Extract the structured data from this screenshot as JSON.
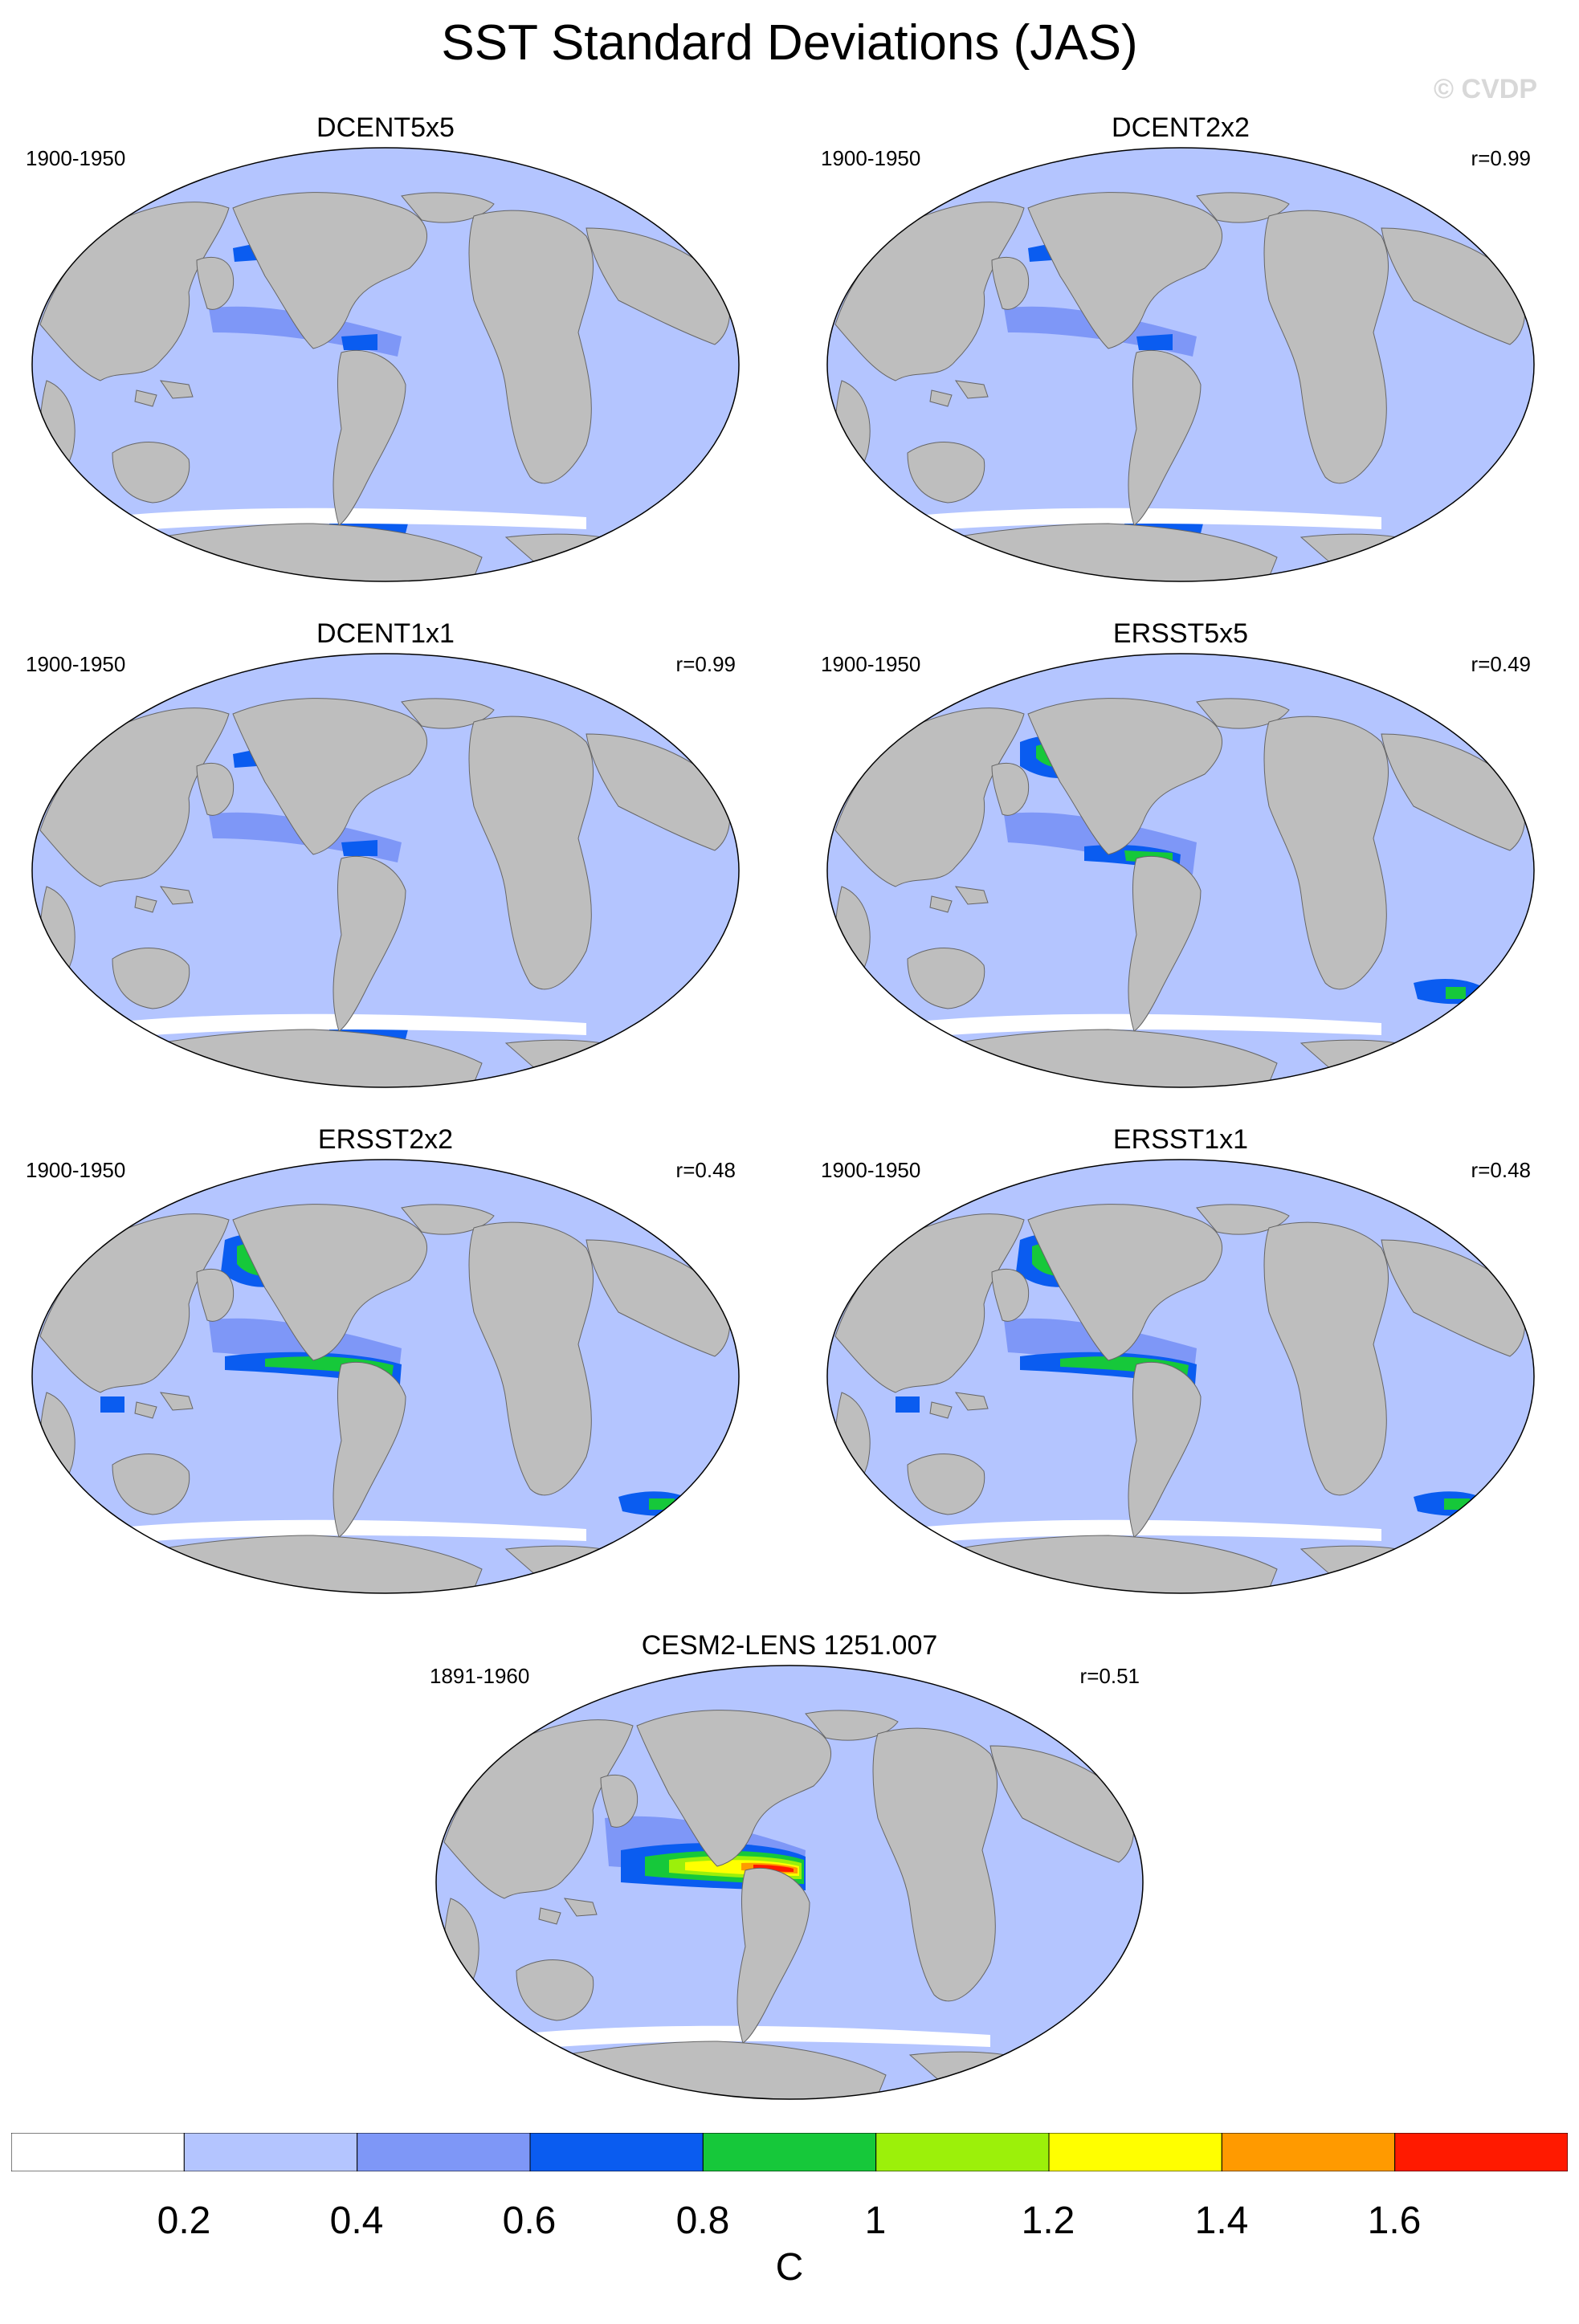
{
  "title": "SST Standard Deviations (JAS)",
  "credit": "© CVDP",
  "colors": {
    "land": "#bebebe",
    "ocean_low": "#b4c5ff",
    "ocean_mid": "#7e97f7",
    "ocean_blue": "#0a5cf0",
    "ocean_green": "#16c83a",
    "ocean_lime": "#9cf00a",
    "ocean_yellow": "#ffff00",
    "ocean_orange": "#ff9a00",
    "ocean_red": "#ff1a00"
  },
  "panels": [
    {
      "title": "DCENT5x5",
      "period": "1900-1950",
      "corr": "",
      "intensity": 1
    },
    {
      "title": "DCENT2x2",
      "period": "1900-1950",
      "corr": "r=0.99",
      "intensity": 1
    },
    {
      "title": "DCENT1x1",
      "period": "1900-1950",
      "corr": "r=0.99",
      "intensity": 1
    },
    {
      "title": "ERSST5x5",
      "period": "1900-1950",
      "corr": "r=0.49",
      "intensity": 2
    },
    {
      "title": "ERSST2x2",
      "period": "1900-1950",
      "corr": "r=0.48",
      "intensity": 3
    },
    {
      "title": "ERSST1x1",
      "period": "1900-1950",
      "corr": "r=0.48",
      "intensity": 3
    },
    {
      "title": "CESM2-LENS 1251.007",
      "period": "1891-1960",
      "corr": "r=0.51",
      "intensity": 4
    }
  ],
  "colorbar": {
    "unit": "C",
    "tick_labels": [
      "0.2",
      "0.4",
      "0.6",
      "0.8",
      "1",
      "1.2",
      "1.4",
      "1.6"
    ],
    "bins": [
      "#ffffff",
      "#b4c5ff",
      "#7e97f7",
      "#0a5cf0",
      "#16c83a",
      "#9cf00a",
      "#ffff00",
      "#ff9a00",
      "#ff1a00"
    ]
  }
}
